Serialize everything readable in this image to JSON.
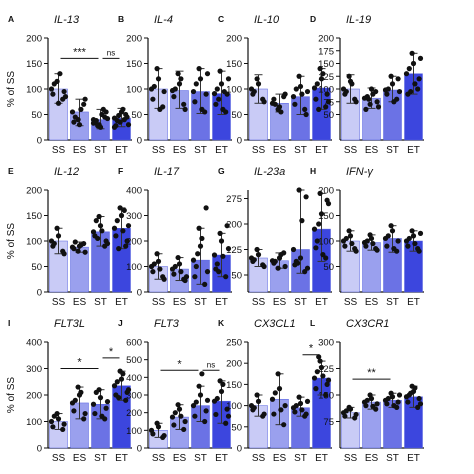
{
  "colors": {
    "SS": "#c9cbf6",
    "ES": "#9aa0ee",
    "ST": "#6b72e5",
    "ET": "#3c46de",
    "axis": "#111111",
    "dot": "#111111"
  },
  "y_axis_label": "% of SS",
  "categories": [
    "SS",
    "ES",
    "ST",
    "ET"
  ],
  "chart_data": [
    {
      "type": "bar",
      "panel": "A",
      "title": "IL-13",
      "ylim": [
        0,
        200
      ],
      "yticks": [
        0,
        50,
        100,
        150,
        200
      ],
      "categories": [
        "SS",
        "ES",
        "ST",
        "ET"
      ],
      "values": [
        100,
        55,
        40,
        43
      ],
      "error": [
        [
          72,
          130
        ],
        [
          28,
          80
        ],
        [
          22,
          60
        ],
        [
          26,
          62
        ]
      ],
      "points": [
        [
          100,
          115,
          80,
          90,
          72,
          95,
          110,
          130,
          85
        ],
        [
          55,
          40,
          70,
          35,
          30,
          80,
          45,
          60
        ],
        [
          40,
          30,
          45,
          35,
          25,
          55,
          38,
          50,
          42,
          28,
          60,
          33
        ],
        [
          43,
          35,
          50,
          28,
          55,
          45,
          38,
          60,
          30,
          48,
          40,
          25
        ]
      ],
      "annotations": [
        {
          "from": 0,
          "to": 2,
          "level": 160,
          "label": "***"
        },
        {
          "from": 2,
          "to": 3,
          "level": 160,
          "label": "ns"
        }
      ]
    },
    {
      "type": "bar",
      "panel": "B",
      "title": "IL-4",
      "ylim": [
        0,
        200
      ],
      "yticks": [
        0,
        50,
        100,
        150,
        200
      ],
      "categories": [
        "SS",
        "ES",
        "ST",
        "ET"
      ],
      "values": [
        100,
        97,
        95,
        91
      ],
      "error": [
        [
          62,
          140
        ],
        [
          62,
          135
        ],
        [
          52,
          140
        ],
        [
          50,
          135
        ]
      ],
      "points": [
        [
          100,
          140,
          65,
          80,
          120,
          95,
          105,
          60
        ],
        [
          97,
          130,
          70,
          85,
          110,
          60,
          100,
          120
        ],
        [
          95,
          140,
          55,
          75,
          120,
          90,
          110,
          60,
          130
        ],
        [
          91,
          135,
          55,
          70,
          110,
          90,
          100,
          60,
          120,
          80,
          95
        ]
      ],
      "annotations": []
    },
    {
      "type": "bar",
      "panel": "C",
      "title": "IL-10",
      "ylim": [
        0,
        200
      ],
      "yticks": [
        0,
        50,
        100,
        150,
        200
      ],
      "categories": [
        "SS",
        "ES",
        "ST",
        "ET"
      ],
      "values": [
        100,
        72,
        85,
        102
      ],
      "error": [
        [
          72,
          128
        ],
        [
          55,
          90
        ],
        [
          50,
          125
        ],
        [
          60,
          140
        ]
      ],
      "points": [
        [
          100,
          120,
          80,
          90,
          110,
          75,
          95
        ],
        [
          72,
          60,
          85,
          80,
          65,
          90,
          70,
          55
        ],
        [
          85,
          125,
          60,
          70,
          105,
          50,
          100,
          90,
          95
        ],
        [
          102,
          140,
          65,
          80,
          120,
          90,
          110,
          130,
          75,
          60
        ]
      ],
      "annotations": []
    },
    {
      "type": "bar",
      "panel": "D",
      "title": "IL-19",
      "ylim": [
        0,
        200
      ],
      "yticks": [
        50,
        75,
        100,
        125,
        150,
        175,
        200
      ],
      "categories": [
        "SS",
        "ES",
        "ST",
        "ET"
      ],
      "values": [
        100,
        82,
        98,
        130
      ],
      "error": [
        [
          72,
          128
        ],
        [
          62,
          102
        ],
        [
          75,
          125
        ],
        [
          90,
          170
        ]
      ],
      "points": [
        [
          100,
          125,
          80,
          90,
          115,
          75,
          95,
          110
        ],
        [
          82,
          70,
          95,
          60,
          100,
          75,
          85,
          90,
          65,
          80
        ],
        [
          98,
          125,
          80,
          90,
          110,
          120,
          100,
          75,
          95
        ],
        [
          130,
          170,
          100,
          90,
          150,
          120,
          140,
          110,
          160,
          95
        ]
      ],
      "annotations": []
    },
    {
      "type": "bar",
      "panel": "E",
      "title": "IL-12",
      "ylim": [
        0,
        200
      ],
      "yticks": [
        0,
        50,
        100,
        150,
        200
      ],
      "categories": [
        "SS",
        "ES",
        "ST",
        "ET"
      ],
      "values": [
        100,
        88,
        118,
        125
      ],
      "error": [
        [
          75,
          125
        ],
        [
          78,
          98
        ],
        [
          90,
          148
        ],
        [
          85,
          165
        ]
      ],
      "points": [
        [
          100,
          125,
          80,
          90,
          110,
          75,
          95
        ],
        [
          88,
          80,
          95,
          85,
          90,
          78,
          98,
          92
        ],
        [
          118,
          148,
          90,
          110,
          130,
          100,
          140,
          120,
          95,
          105
        ],
        [
          125,
          165,
          90,
          110,
          150,
          100,
          140,
          120,
          130,
          85,
          160
        ]
      ],
      "annotations": []
    },
    {
      "type": "bar",
      "panel": "F",
      "title": "IL-17",
      "ylim": [
        0,
        400
      ],
      "yticks": [
        0,
        100,
        200,
        300,
        400
      ],
      "categories": [
        "SS",
        "ES",
        "ST",
        "ET"
      ],
      "values": [
        100,
        90,
        125,
        145
      ],
      "error": [
        [
          50,
          150
        ],
        [
          45,
          135
        ],
        [
          30,
          250
        ],
        [
          60,
          230
        ]
      ],
      "points": [
        [
          100,
          150,
          60,
          80,
          120,
          50,
          110,
          90
        ],
        [
          90,
          135,
          50,
          70,
          110,
          45,
          100,
          80,
          60
        ],
        [
          125,
          250,
          30,
          60,
          180,
          330,
          100,
          210,
          80,
          150
        ],
        [
          145,
          230,
          60,
          90,
          200,
          260,
          110,
          140,
          170,
          80
        ]
      ],
      "annotations": []
    },
    {
      "type": "bar",
      "panel": "G",
      "title": "IL-23a",
      "ylim": [
        0,
        300
      ],
      "yticks": [
        50,
        125,
        200,
        275
      ],
      "categories": [
        "SS",
        "ES",
        "ST",
        "ET"
      ],
      "values": [
        100,
        92,
        125,
        185
      ],
      "error": [
        [
          75,
          125
        ],
        [
          70,
          115
        ],
        [
          55,
          300
        ],
        [
          90,
          290
        ]
      ],
      "points": [
        [
          100,
          125,
          80,
          90,
          110,
          75,
          95
        ],
        [
          92,
          70,
          115,
          85,
          100,
          75,
          90,
          110
        ],
        [
          125,
          300,
          60,
          80,
          100,
          280,
          90,
          210,
          70,
          85
        ],
        [
          185,
          290,
          100,
          130,
          230,
          270,
          150,
          110,
          260,
          200
        ]
      ],
      "annotations": []
    },
    {
      "type": "bar",
      "panel": "H",
      "title": "IFN-γ",
      "ylim": [
        0,
        200
      ],
      "yticks": [
        50,
        100,
        150,
        200
      ],
      "categories": [
        "SS",
        "ES",
        "ST",
        "ET"
      ],
      "values": [
        100,
        97,
        105,
        100
      ],
      "error": [
        [
          80,
          120
        ],
        [
          82,
          112
        ],
        [
          78,
          130
        ],
        [
          80,
          120
        ]
      ],
      "points": [
        [
          100,
          120,
          85,
          90,
          110,
          80,
          105,
          95
        ],
        [
          97,
          112,
          85,
          90,
          105,
          82,
          100,
          95
        ],
        [
          105,
          130,
          80,
          90,
          120,
          100,
          110,
          85
        ],
        [
          100,
          120,
          85,
          90,
          110,
          80,
          105,
          95,
          115
        ]
      ],
      "annotations": []
    },
    {
      "type": "bar",
      "panel": "I",
      "title": "FLT3L",
      "ylim": [
        0,
        400
      ],
      "yticks": [
        0,
        100,
        200,
        300,
        400
      ],
      "categories": [
        "SS",
        "ES",
        "ST",
        "ET"
      ],
      "values": [
        100,
        170,
        165,
        235
      ],
      "error": [
        [
          70,
          130
        ],
        [
          110,
          230
        ],
        [
          110,
          220
        ],
        [
          180,
          290
        ]
      ],
      "points": [
        [
          100,
          130,
          70,
          80,
          110,
          90,
          120
        ],
        [
          170,
          230,
          110,
          140,
          200,
          130,
          180,
          210
        ],
        [
          165,
          220,
          110,
          130,
          190,
          150,
          210,
          120,
          175
        ],
        [
          235,
          290,
          180,
          200,
          260,
          210,
          250,
          280,
          220,
          190
        ]
      ],
      "annotations": [
        {
          "from": 0,
          "to": 2,
          "level": 300,
          "label": "*"
        },
        {
          "from": 2,
          "to": 3,
          "level": 340,
          "label": "*"
        }
      ]
    },
    {
      "type": "bar",
      "panel": "J",
      "title": "FLT3",
      "ylim": [
        0,
        600
      ],
      "yticks": [
        0,
        100,
        200,
        300,
        400,
        500,
        600
      ],
      "categories": [
        "SS",
        "ES",
        "ST",
        "ET"
      ],
      "values": [
        100,
        175,
        240,
        265
      ],
      "error": [
        [
          60,
          140
        ],
        [
          105,
          245
        ],
        [
          150,
          350
        ],
        [
          140,
          380
        ]
      ],
      "points": [
        [
          100,
          140,
          60,
          80,
          120,
          70
        ],
        [
          175,
          245,
          105,
          130,
          220,
          150,
          200,
          180
        ],
        [
          240,
          350,
          150,
          180,
          300,
          210,
          260,
          420,
          270
        ],
        [
          265,
          380,
          140,
          190,
          320,
          220,
          280,
          360,
          180
        ]
      ],
      "annotations": [
        {
          "from": 0,
          "to": 2,
          "level": 440,
          "label": "*"
        },
        {
          "from": 2,
          "to": 3,
          "level": 440,
          "label": "ns"
        }
      ]
    },
    {
      "type": "bar",
      "panel": "K",
      "title": "CX3CL1",
      "ylim": [
        0,
        250
      ],
      "yticks": [
        0,
        50,
        100,
        150,
        200,
        250
      ],
      "categories": [
        "SS",
        "ES",
        "ST",
        "ET"
      ],
      "values": [
        100,
        115,
        95,
        165
      ],
      "error": [
        [
          75,
          125
        ],
        [
          55,
          175
        ],
        [
          75,
          120
        ],
        [
          125,
          205
        ]
      ],
      "points": [
        [
          100,
          125,
          75,
          90,
          110,
          80,
          95
        ],
        [
          115,
          175,
          55,
          80,
          140,
          100,
          130,
          90
        ],
        [
          95,
          120,
          75,
          85,
          105,
          80,
          100,
          90,
          110
        ],
        [
          165,
          205,
          125,
          140,
          190,
          150,
          180,
          170,
          160,
          215
        ]
      ],
      "annotations": [
        {
          "from": 2,
          "to": 3,
          "level": 220,
          "label": "*"
        }
      ]
    },
    {
      "type": "bar",
      "panel": "L",
      "title": "CX3CR1",
      "ylim": [
        0,
        300
      ],
      "yticks": [
        75,
        150,
        225,
        300
      ],
      "categories": [
        "SS",
        "ES",
        "ST",
        "ET"
      ],
      "values": [
        100,
        130,
        135,
        145
      ],
      "error": [
        [
          85,
          115
        ],
        [
          110,
          150
        ],
        [
          115,
          155
        ],
        [
          115,
          175
        ]
      ],
      "points": [
        [
          100,
          115,
          85,
          90,
          110,
          95,
          105
        ],
        [
          130,
          150,
          110,
          120,
          140,
          125,
          135,
          118
        ],
        [
          135,
          155,
          115,
          125,
          145,
          130,
          140,
          120,
          150
        ],
        [
          145,
          175,
          115,
          130,
          160,
          140,
          150,
          170,
          125,
          155
        ]
      ],
      "annotations": [
        {
          "from": 0,
          "to": 2,
          "level": 195,
          "label": "**"
        }
      ]
    }
  ]
}
